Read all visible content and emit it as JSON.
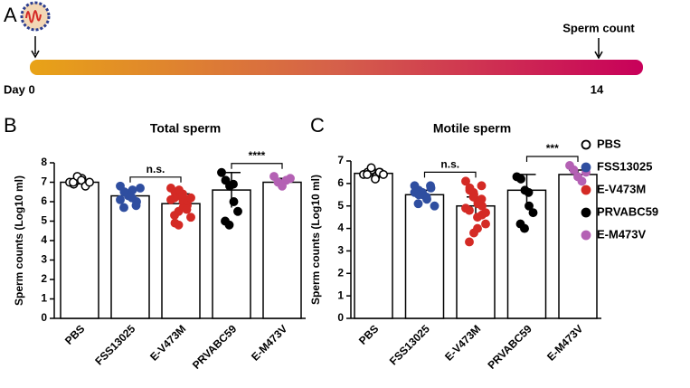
{
  "timeline": {
    "panel": "A",
    "start": "Day 0",
    "end": "14",
    "event": "Sperm count"
  },
  "legend": [
    {
      "name": "PBS",
      "color": "#000000",
      "filled": false
    },
    {
      "name": "FSS13025",
      "color": "#2f4ea0",
      "filled": true
    },
    {
      "name": "E-V473M",
      "color": "#d42a25",
      "filled": true
    },
    {
      "name": "PRVABC59",
      "color": "#000000",
      "filled": true
    },
    {
      "name": "E-M473V",
      "color": "#b461b4",
      "filled": true
    }
  ],
  "chart_data": [
    {
      "type": "bar",
      "panel": "B",
      "title": "Total sperm",
      "ylabel": "Sperm counts (Log10 ml)",
      "categories": [
        "PBS",
        "FSS13025",
        "E-V473M",
        "PRVABC59",
        "E-M473V"
      ],
      "colors": [
        "#000000",
        "#2f4ea0",
        "#d42a25",
        "#000000",
        "#b461b4"
      ],
      "values": [
        7.0,
        6.3,
        5.9,
        6.6,
        7.0
      ],
      "errors": [
        0.1,
        0.3,
        0.5,
        0.9,
        0.2
      ],
      "points": [
        [
          7.0,
          6.9,
          7.1,
          7.2,
          6.9,
          7.0,
          7.3,
          7.1,
          6.8,
          7.0
        ],
        [
          6.8,
          6.5,
          6.3,
          6.6,
          6.0,
          5.7,
          6.4,
          6.2,
          5.8,
          6.7,
          6.1,
          6.5
        ],
        [
          6.7,
          6.5,
          6.3,
          6.0,
          5.8,
          6.2,
          5.5,
          6.4,
          5.9,
          5.2,
          6.1,
          4.9,
          6.6,
          5.7,
          6.0,
          5.3,
          4.8,
          6.3,
          5.6,
          6.2
        ],
        [
          7.5,
          7.1,
          6.8,
          6.0,
          5.5,
          5.0,
          4.8,
          6.9
        ],
        [
          7.3,
          7.0,
          6.8,
          7.1,
          7.2
        ]
      ],
      "comparisons": [
        {
          "groups": [
            "FSS13025",
            "E-V473M"
          ],
          "label": "n.s."
        },
        {
          "groups": [
            "PRVABC59",
            "E-M473V"
          ],
          "label": "****"
        }
      ],
      "ylim": [
        0,
        8
      ],
      "yticks": [
        0,
        1,
        2,
        3,
        4,
        5,
        6,
        7,
        8
      ]
    },
    {
      "type": "bar",
      "panel": "C",
      "title": "Motile sperm",
      "ylabel": "Sperm counts (Log10 ml)",
      "categories": [
        "PBS",
        "FSS13025",
        "E-V473M",
        "PRVABC59",
        "E-M473V"
      ],
      "colors": [
        "#000000",
        "#2f4ea0",
        "#d42a25",
        "#000000",
        "#b461b4"
      ],
      "values": [
        6.45,
        5.5,
        5.0,
        5.7,
        6.4
      ],
      "errors": [
        0.1,
        0.2,
        0.4,
        0.7,
        0.2
      ],
      "points": [
        [
          6.4,
          6.5,
          6.6,
          6.3,
          6.5,
          6.4,
          6.7,
          6.2,
          6.5,
          6.4
        ],
        [
          5.9,
          5.7,
          5.5,
          5.3,
          5.8,
          5.1,
          5.6,
          5.4,
          5.9,
          5.0,
          5.6,
          5.5
        ],
        [
          6.1,
          5.8,
          5.5,
          5.2,
          5.0,
          4.8,
          5.6,
          4.5,
          5.3,
          4.2,
          4.9,
          5.7,
          3.8,
          5.1,
          4.6,
          3.4,
          5.4,
          4.0,
          5.9,
          4.7
        ],
        [
          6.3,
          6.2,
          5.7,
          5.0,
          4.7,
          4.2,
          4.0,
          5.6
        ],
        [
          6.8,
          6.6,
          6.3,
          6.1,
          6.5
        ]
      ],
      "comparisons": [
        {
          "groups": [
            "FSS13025",
            "E-V473M"
          ],
          "label": "n.s."
        },
        {
          "groups": [
            "PRVABC59",
            "E-M473V"
          ],
          "label": "***"
        }
      ],
      "ylim": [
        0,
        7
      ],
      "yticks": [
        0,
        1,
        2,
        3,
        4,
        5,
        6,
        7
      ]
    }
  ]
}
